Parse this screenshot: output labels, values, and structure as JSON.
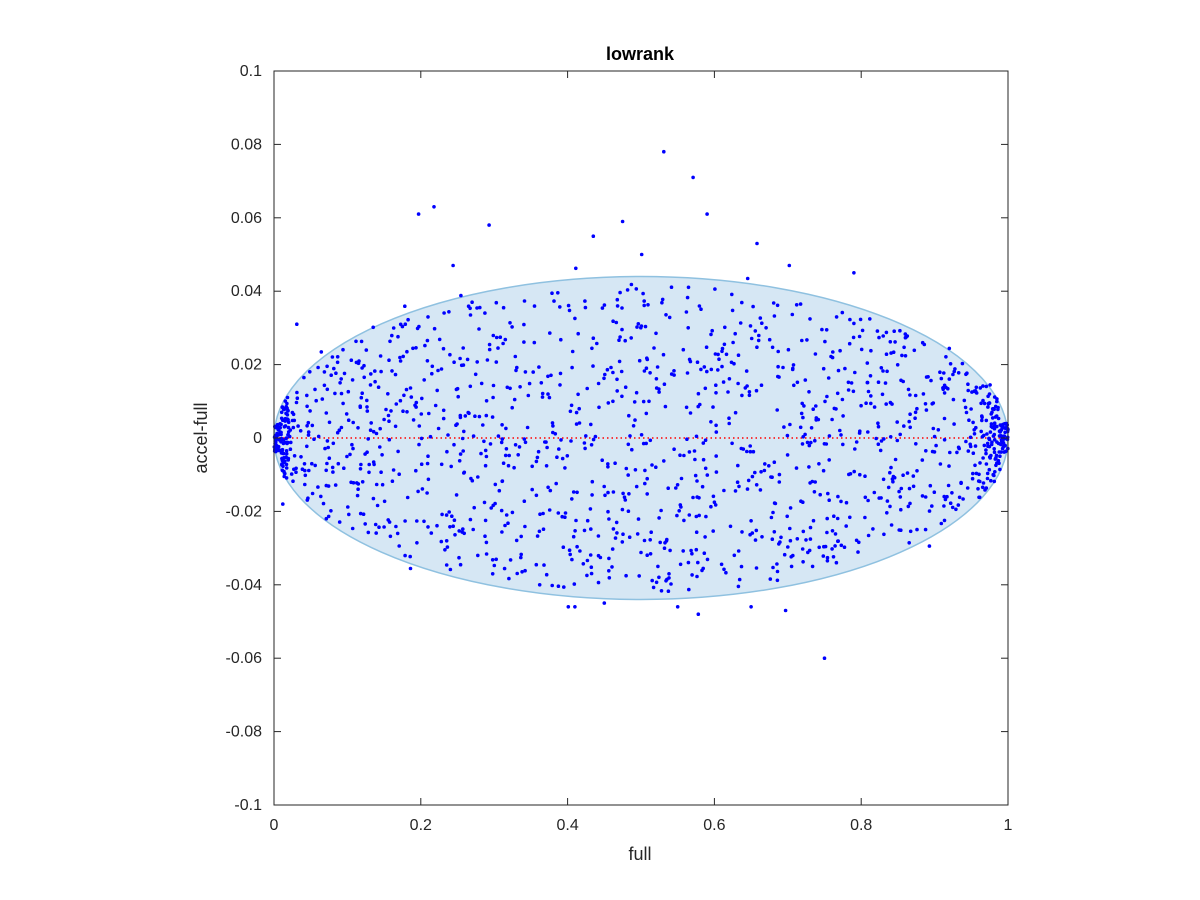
{
  "chart_data": {
    "type": "scatter",
    "title": "lowrank",
    "xlabel": "full",
    "ylabel": "accel-full",
    "xlim": [
      0,
      1
    ],
    "ylim": [
      -0.1,
      0.1
    ],
    "xticks": [
      0,
      0.2,
      0.4,
      0.6,
      0.8,
      1
    ],
    "xtick_labels": [
      "0",
      "0.2",
      "0.4",
      "0.6",
      "0.8",
      "1"
    ],
    "yticks": [
      -0.1,
      -0.08,
      -0.06,
      -0.04,
      -0.02,
      0,
      0.02,
      0.04,
      0.06,
      0.08,
      0.1
    ],
    "ytick_labels": [
      "-0.1",
      "-0.08",
      "-0.06",
      "-0.04",
      "-0.02",
      "0",
      "0.02",
      "0.04",
      "0.06",
      "0.08",
      "0.1"
    ],
    "grid": false,
    "reference_line": {
      "y": 0,
      "style": "dotted",
      "color": "#ff0000"
    },
    "ellipse": {
      "cx": 0.5,
      "cy": 0.0,
      "rx": 0.5,
      "ry": 0.044,
      "fill": "#d6e7f4",
      "stroke": "#8fc1e0"
    },
    "point_color": "#0000ff",
    "notable_points": [
      [
        0.531,
        0.078
      ],
      [
        0.571,
        0.071
      ],
      [
        0.218,
        0.063
      ],
      [
        0.197,
        0.061
      ],
      [
        0.59,
        0.061
      ],
      [
        0.475,
        0.059
      ],
      [
        0.293,
        0.058
      ],
      [
        0.435,
        0.055
      ],
      [
        0.501,
        0.05
      ],
      [
        0.658,
        0.053
      ],
      [
        0.244,
        0.047
      ],
      [
        0.702,
        0.047
      ],
      [
        0.79,
        0.045
      ],
      [
        0.75,
        -0.06
      ],
      [
        0.578,
        -0.048
      ],
      [
        0.697,
        -0.047
      ],
      [
        0.41,
        -0.046
      ],
      [
        0.401,
        -0.046
      ],
      [
        0.45,
        -0.045
      ],
      [
        0.55,
        -0.046
      ],
      [
        0.65,
        -0.046
      ],
      [
        0.031,
        0.031
      ],
      [
        0.012,
        -0.018
      ],
      [
        0.362,
        -0.04
      ],
      [
        0.298,
        -0.037
      ]
    ],
    "n_points": 1500,
    "seed": 7
  }
}
